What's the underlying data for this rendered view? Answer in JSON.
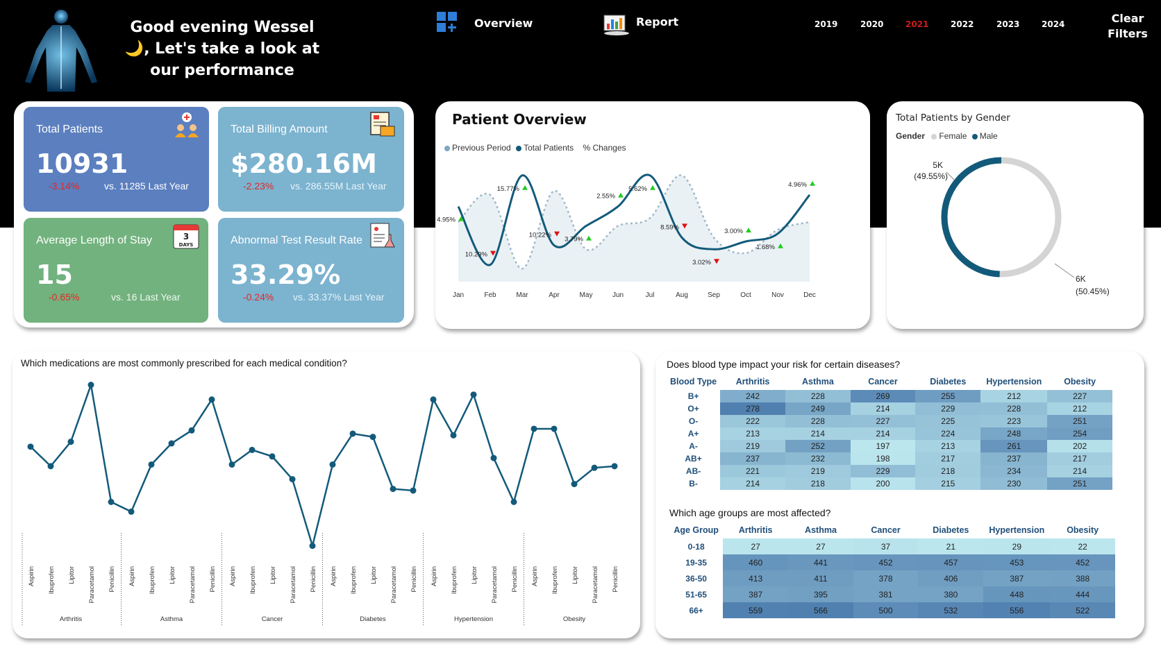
{
  "header": {
    "greeting_line1": "Good evening Wessel",
    "greeting_line2": "🌙, Let's take a look at",
    "greeting_line3": "our performance",
    "nav_overview": "Overview",
    "nav_report": "Report",
    "years": [
      "2019",
      "2020",
      "2021",
      "2022",
      "2023",
      "2024"
    ],
    "active_year": "2021",
    "clear_filters_line1": "Clear",
    "clear_filters_line2": "Filters"
  },
  "kpis": [
    {
      "title": "Total Patients",
      "value": "10931",
      "change": "-3.14%",
      "vs": "vs. 11285 Last Year",
      "color": "#5b7fbf",
      "icon": "patients-icon"
    },
    {
      "title": "Total Billing Amount",
      "value": "$280.16M",
      "change": "-2.23%",
      "vs": "vs. 286.55M Last Year",
      "color": "#7cb3cf",
      "icon": "billing-icon"
    },
    {
      "title": "Average Length of Stay",
      "value": "15",
      "change": "-0.65%",
      "vs": "vs. 16 Last Year",
      "color": "#72b27e",
      "icon": "calendar-icon",
      "icon_text": "3",
      "icon_subtext": "DAYS"
    },
    {
      "title": "Abnormal Test Result Rate",
      "value": "33.29%",
      "change": "-0.24%",
      "vs": "vs. 33.37% Last Year",
      "color": "#7cb3cf",
      "icon": "lab-report-icon"
    }
  ],
  "patient_overview": {
    "title": "Patient Overview",
    "legend": [
      "Previous Period",
      "Total Patients",
      "% Changes"
    ],
    "colors": {
      "previous": "#9fb8c8",
      "total": "#135a7a",
      "up": "#22cc22",
      "down": "#dd1111"
    }
  },
  "gender": {
    "title": "Total Patients by Gender",
    "legend_label": "Gender",
    "legend_items": [
      "Female",
      "Male"
    ],
    "colors": {
      "Female": "#d4d4d4",
      "Male": "#135a7a"
    },
    "labels": [
      {
        "name": "Male",
        "value": "5K",
        "pct": "(49.55%)"
      },
      {
        "name": "Female",
        "value": "6K",
        "pct": "(50.45%)"
      }
    ]
  },
  "medications": {
    "title": "Which medications are most commonly prescribed for each medical condition?"
  },
  "blood": {
    "title": "Does blood type impact your risk for certain diseases?",
    "header": [
      "Blood Type",
      "Arthritis",
      "Asthma",
      "Cancer",
      "Diabetes",
      "Hypertension",
      "Obesity"
    ],
    "rows": [
      {
        "label": "B+",
        "values": [
          242,
          228,
          269,
          255,
          212,
          227
        ]
      },
      {
        "label": "O+",
        "values": [
          278,
          249,
          214,
          229,
          228,
          212
        ]
      },
      {
        "label": "O-",
        "values": [
          222,
          228,
          227,
          225,
          223,
          251
        ]
      },
      {
        "label": "A+",
        "values": [
          213,
          214,
          214,
          224,
          248,
          254
        ]
      },
      {
        "label": "A-",
        "values": [
          219,
          252,
          197,
          213,
          261,
          202
        ]
      },
      {
        "label": "AB+",
        "values": [
          237,
          232,
          198,
          217,
          237,
          217
        ]
      },
      {
        "label": "AB-",
        "values": [
          221,
          219,
          229,
          218,
          234,
          214
        ]
      },
      {
        "label": "B-",
        "values": [
          214,
          218,
          200,
          215,
          230,
          251
        ]
      }
    ]
  },
  "age": {
    "title": "Which age groups are most affected?",
    "header": [
      "Age Group",
      "Arthritis",
      "Asthma",
      "Cancer",
      "Diabetes",
      "Hypertension",
      "Obesity"
    ],
    "rows": [
      {
        "label": "0-18",
        "values": [
          27,
          27,
          37,
          21,
          29,
          22
        ]
      },
      {
        "label": "19-35",
        "values": [
          460,
          441,
          452,
          457,
          453,
          452
        ]
      },
      {
        "label": "36-50",
        "values": [
          413,
          411,
          378,
          406,
          387,
          388
        ]
      },
      {
        "label": "51-65",
        "values": [
          387,
          395,
          381,
          380,
          448,
          444
        ]
      },
      {
        "label": "66+",
        "values": [
          559,
          566,
          500,
          532,
          556,
          522
        ]
      }
    ]
  },
  "chart_data": [
    {
      "type": "line",
      "categories": [
        "Jan",
        "Feb",
        "Mar",
        "Apr",
        "May",
        "Jun",
        "Jul",
        "Aug",
        "Sep",
        "Oct",
        "Nov",
        "Dec"
      ],
      "series": [
        {
          "name": "Previous Period",
          "values": [
            930,
            1000,
            810,
            1010,
            860,
            920,
            940,
            1050,
            890,
            850,
            910,
            930
          ]
        },
        {
          "name": "Total Patients",
          "values": [
            970,
            820,
            1050,
            870,
            920,
            970,
            1050,
            890,
            860,
            880,
            900,
            1000
          ]
        },
        {
          "name": "% Changes",
          "values": [
            4.95,
            -10.29,
            15.77,
            -10.22,
            3.79,
            2.55,
            5.62,
            -8.59,
            -3.02,
            3.0,
            1.68,
            4.96
          ]
        }
      ],
      "change_labels": [
        "4.95%",
        "10.29%",
        "15.77%",
        "10.22%",
        "3.79%",
        "2.55%",
        "5.62%",
        "8.59%",
        "3.02%",
        "3.00%",
        "1.68%",
        "4.96%"
      ],
      "change_direction": [
        "up",
        "down",
        "up",
        "down",
        "up",
        "up",
        "up",
        "down",
        "down",
        "up",
        "up",
        "up"
      ],
      "legend_position": "top-left"
    },
    {
      "type": "pie",
      "categories": [
        "Male",
        "Female"
      ],
      "values": [
        49.55,
        50.45
      ],
      "title": "Total Patients by Gender"
    },
    {
      "type": "line",
      "title": "Which medications are most commonly prescribed for each medical condition?",
      "groups": [
        {
          "name": "Arthritis",
          "items": [
            "Aspirin",
            "Ibuprofen",
            "Lipitor",
            "Paracetamol",
            "Penicillin"
          ],
          "values": [
            380,
            368,
            383,
            418,
            346
          ]
        },
        {
          "name": "Asthma",
          "items": [
            "Aspirin",
            "Ibuprofen",
            "Lipitor",
            "Paracetamol",
            "Penicillin"
          ],
          "values": [
            340,
            369,
            382,
            390,
            409
          ]
        },
        {
          "name": "Cancer",
          "items": [
            "Aspirin",
            "Ibuprofen",
            "Lipitor",
            "Paracetamol",
            "Penicillin"
          ],
          "values": [
            369,
            378,
            374,
            360,
            319
          ]
        },
        {
          "name": "Diabetes",
          "items": [
            "Aspirin",
            "Ibuprofen",
            "Lipitor",
            "Paracetamol",
            "Penicillin"
          ],
          "values": [
            369,
            388,
            386,
            354,
            353
          ]
        },
        {
          "name": "Hypertension",
          "items": [
            "Aspirin",
            "Ibuprofen",
            "Lipitor",
            "Paracetamol",
            "Penicillin"
          ],
          "values": [
            409,
            387,
            412,
            373,
            346
          ]
        },
        {
          "name": "Obesity",
          "items": [
            "Aspirin",
            "Ibuprofen",
            "Lipitor",
            "Paracetamol",
            "Penicillin"
          ],
          "values": [
            391,
            391,
            357,
            367,
            368
          ]
        }
      ]
    }
  ]
}
